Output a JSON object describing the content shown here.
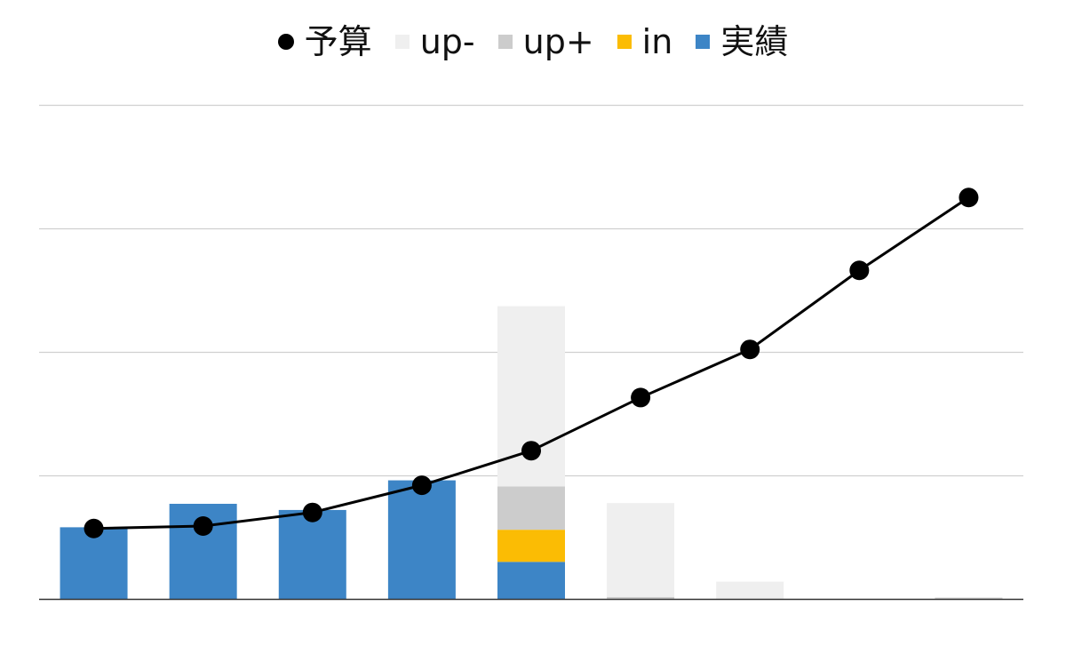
{
  "chart_data": {
    "type": "bar",
    "categories": [
      "",
      "",
      "",
      "",
      "",
      "",
      "",
      "",
      ""
    ],
    "ylim": [
      0,
      2000
    ],
    "grid": true,
    "legend_position": "top-center",
    "legend": [
      {
        "name": "予算",
        "symbol": "dot",
        "color": "#000000"
      },
      {
        "name": "up-",
        "symbol": "square",
        "color": "#efefef"
      },
      {
        "name": "up+",
        "symbol": "square",
        "color": "#cccccc"
      },
      {
        "name": "in",
        "symbol": "square",
        "color": "#fbbc04"
      },
      {
        "name": "実績",
        "symbol": "square",
        "color": "#3d85c6"
      }
    ],
    "stacked_series": [
      {
        "name": "実績",
        "color": "#3d85c6",
        "values": [
          290,
          385,
          360,
          480,
          150,
          0,
          0,
          0,
          0
        ]
      },
      {
        "name": "in",
        "color": "#fbbc04",
        "values": [
          0,
          0,
          0,
          0,
          130,
          0,
          0,
          0,
          0
        ]
      },
      {
        "name": "up+",
        "color": "#cccccc",
        "values": [
          0,
          0,
          0,
          0,
          175,
          8,
          0,
          0,
          5
        ]
      },
      {
        "name": "up-",
        "color": "#efefef",
        "values": [
          0,
          0,
          0,
          0,
          730,
          380,
          70,
          0,
          0
        ]
      }
    ],
    "line_series": {
      "name": "予算",
      "color": "#000000",
      "values": [
        285,
        295,
        350,
        460,
        600,
        815,
        1010,
        1330,
        1625
      ]
    }
  }
}
